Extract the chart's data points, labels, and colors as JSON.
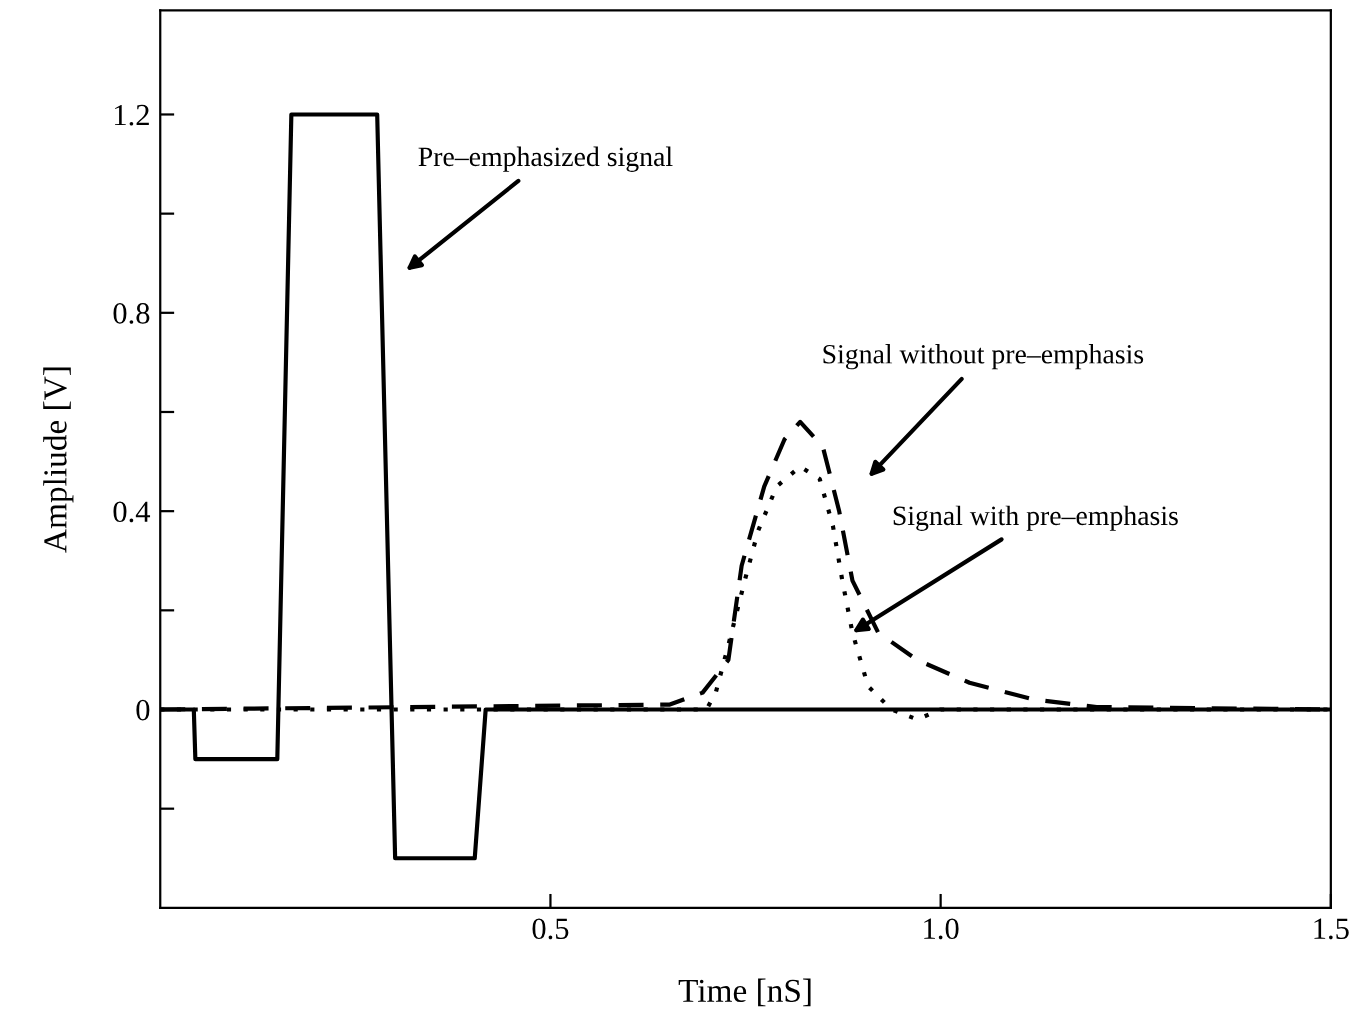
{
  "chart_data": {
    "type": "line",
    "xlabel": "Time [nS]",
    "ylabel": "Ampliude [V]",
    "xlim": [
      0,
      1.5
    ],
    "ylim": [
      -0.4,
      1.41
    ],
    "xticks": [
      0.5,
      {
        "value": 1.0,
        "label": "1.0"
      },
      1.5
    ],
    "yticks": [
      {
        "value": -0.2,
        "label": null
      },
      0,
      {
        "value": 0.2,
        "label": null
      },
      0.4,
      {
        "value": 0.6,
        "label": null
      },
      0.8,
      {
        "value": 1.0,
        "label": null
      },
      1.2
    ],
    "grid": false,
    "legend": false,
    "series": [
      {
        "color": "#000000",
        "line_style": "solid",
        "x": [
          0,
          0.043,
          0.045,
          0.15,
          0.168,
          0.278,
          0.301,
          0.403,
          0.417,
          1.5
        ],
        "values": [
          0,
          0,
          -0.1,
          -0.1,
          1.2,
          1.2,
          -0.3,
          -0.3,
          0,
          0
        ]
      },
      {
        "color": "#000000",
        "line_style": "dashed",
        "x": [
          0,
          0.653,
          0.695,
          0.728,
          0.745,
          0.774,
          0.8,
          0.82,
          0.849,
          0.87,
          0.887,
          0.92,
          0.97,
          1.037,
          1.12,
          1.2,
          1.5
        ],
        "values": [
          0,
          0.01,
          0.034,
          0.1,
          0.29,
          0.45,
          0.545,
          0.58,
          0.53,
          0.4,
          0.26,
          0.155,
          0.1,
          0.054,
          0.02,
          0.005,
          0
        ]
      },
      {
        "color": "#000000",
        "line_style": "dotted",
        "x": [
          0,
          0.7,
          0.712,
          0.728,
          0.749,
          0.766,
          0.79,
          0.82,
          0.845,
          0.862,
          0.874,
          0.887,
          0.907,
          0.937,
          0.97,
          1.0,
          1.5
        ],
        "values": [
          0,
          0,
          0.035,
          0.13,
          0.26,
          0.36,
          0.45,
          0.49,
          0.465,
          0.37,
          0.26,
          0.155,
          0.047,
          0,
          -0.02,
          0,
          0
        ]
      }
    ],
    "annotations": [
      "Pre–emphasized signal",
      "Signal without pre–emphasis",
      {
        "text": "Signal with pre–emphasis",
        "x": 0.887,
        "y": 0.155
      }
    ]
  }
}
